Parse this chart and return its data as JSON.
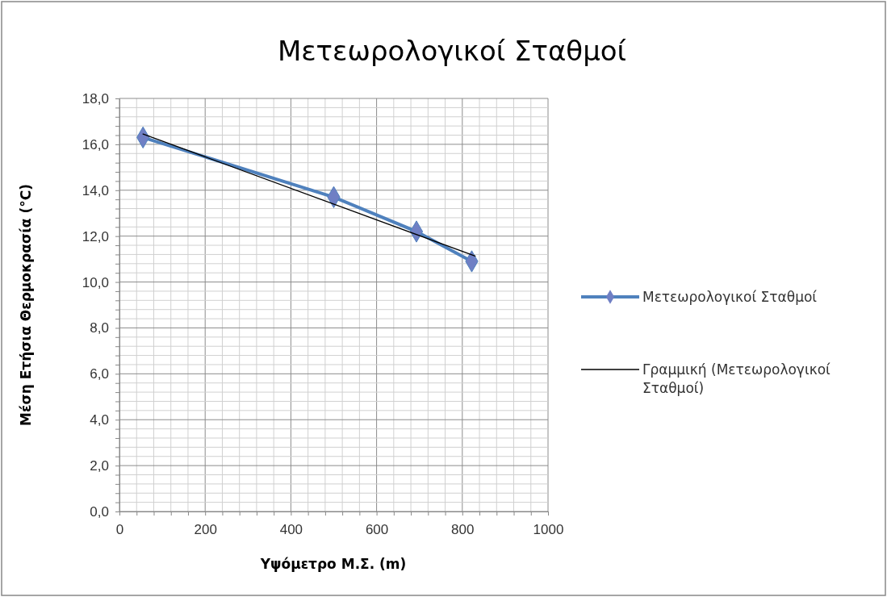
{
  "chart_data": {
    "type": "line",
    "title": "Μετεωρολογικοί Σταθμοί",
    "xlabel": "Υψόμετρο Μ.Σ. (m)",
    "ylabel": "Μέση  Ετήσια Θερμοκρασία (°C)",
    "xlim": [
      0,
      1000
    ],
    "ylim": [
      0,
      18
    ],
    "xticks": [
      0,
      {
        "value": 40,
        "label": null
      },
      {
        "value": 80,
        "label": null
      },
      {
        "value": 120,
        "label": null
      },
      {
        "value": 160,
        "label": null
      },
      200,
      {
        "value": 240,
        "label": null
      },
      {
        "value": 280,
        "label": null
      },
      {
        "value": 320,
        "label": null
      },
      {
        "value": 360,
        "label": null
      },
      400,
      {
        "value": 440,
        "label": null
      },
      {
        "value": 480,
        "label": null
      },
      {
        "value": 520,
        "label": null
      },
      {
        "value": 560,
        "label": null
      },
      600,
      {
        "value": 640,
        "label": null
      },
      {
        "value": 680,
        "label": null
      },
      {
        "value": 720,
        "label": null
      },
      {
        "value": 760,
        "label": null
      },
      800,
      {
        "value": 840,
        "label": null
      },
      {
        "value": 880,
        "label": null
      },
      {
        "value": 920,
        "label": null
      },
      {
        "value": 960,
        "label": null
      },
      1000
    ],
    "yticks": [
      {
        "value": 0,
        "label": "0,0"
      },
      {
        "value": 0.4,
        "label": null
      },
      {
        "value": 0.8,
        "label": null
      },
      {
        "value": 1.2,
        "label": null
      },
      {
        "value": 1.6,
        "label": null
      },
      {
        "value": 2,
        "label": "2,0"
      },
      {
        "value": 2.4,
        "label": null
      },
      {
        "value": 2.8,
        "label": null
      },
      {
        "value": 3.2,
        "label": null
      },
      {
        "value": 3.6,
        "label": null
      },
      {
        "value": 4,
        "label": "4,0"
      },
      {
        "value": 4.4,
        "label": null
      },
      {
        "value": 4.8,
        "label": null
      },
      {
        "value": 5.2,
        "label": null
      },
      {
        "value": 5.6,
        "label": null
      },
      {
        "value": 6,
        "label": "6,0"
      },
      {
        "value": 6.4,
        "label": null
      },
      {
        "value": 6.8,
        "label": null
      },
      {
        "value": 7.2,
        "label": null
      },
      {
        "value": 7.6,
        "label": null
      },
      {
        "value": 8,
        "label": "8,0"
      },
      {
        "value": 8.4,
        "label": null
      },
      {
        "value": 8.8,
        "label": null
      },
      {
        "value": 9.2,
        "label": null
      },
      {
        "value": 9.6,
        "label": null
      },
      {
        "value": 10,
        "label": "10,0"
      },
      {
        "value": 10.4,
        "label": null
      },
      {
        "value": 10.8,
        "label": null
      },
      {
        "value": 11.2,
        "label": null
      },
      {
        "value": 11.6,
        "label": null
      },
      {
        "value": 12,
        "label": "12,0"
      },
      {
        "value": 12.4,
        "label": null
      },
      {
        "value": 12.8,
        "label": null
      },
      {
        "value": 13.2,
        "label": null
      },
      {
        "value": 13.6,
        "label": null
      },
      {
        "value": 14,
        "label": "14,0"
      },
      {
        "value": 14.4,
        "label": null
      },
      {
        "value": 14.8,
        "label": null
      },
      {
        "value": 15.2,
        "label": null
      },
      {
        "value": 15.6,
        "label": null
      },
      {
        "value": 16,
        "label": "16,0"
      },
      {
        "value": 16.4,
        "label": null
      },
      {
        "value": 16.8,
        "label": null
      },
      {
        "value": 17.2,
        "label": null
      },
      {
        "value": 17.6,
        "label": null
      },
      {
        "value": 18,
        "label": "18,0"
      }
    ],
    "grid": true,
    "legend": "right",
    "series": [
      {
        "name": "Μετεωρολογικοί Σταθμοί",
        "color": "#4f81bd",
        "x": [
          55,
          500,
          693,
          822
        ],
        "values": [
          16.3,
          13.7,
          12.2,
          10.9
        ],
        "marker": "diamond"
      },
      {
        "name": "Γραμμική (Μετεωρολογικοί Σταθμοί)",
        "type": "line",
        "color": "#000000",
        "x": [
          55,
          830
        ],
        "values": [
          16.45,
          11.13
        ],
        "marker": "none"
      }
    ]
  }
}
